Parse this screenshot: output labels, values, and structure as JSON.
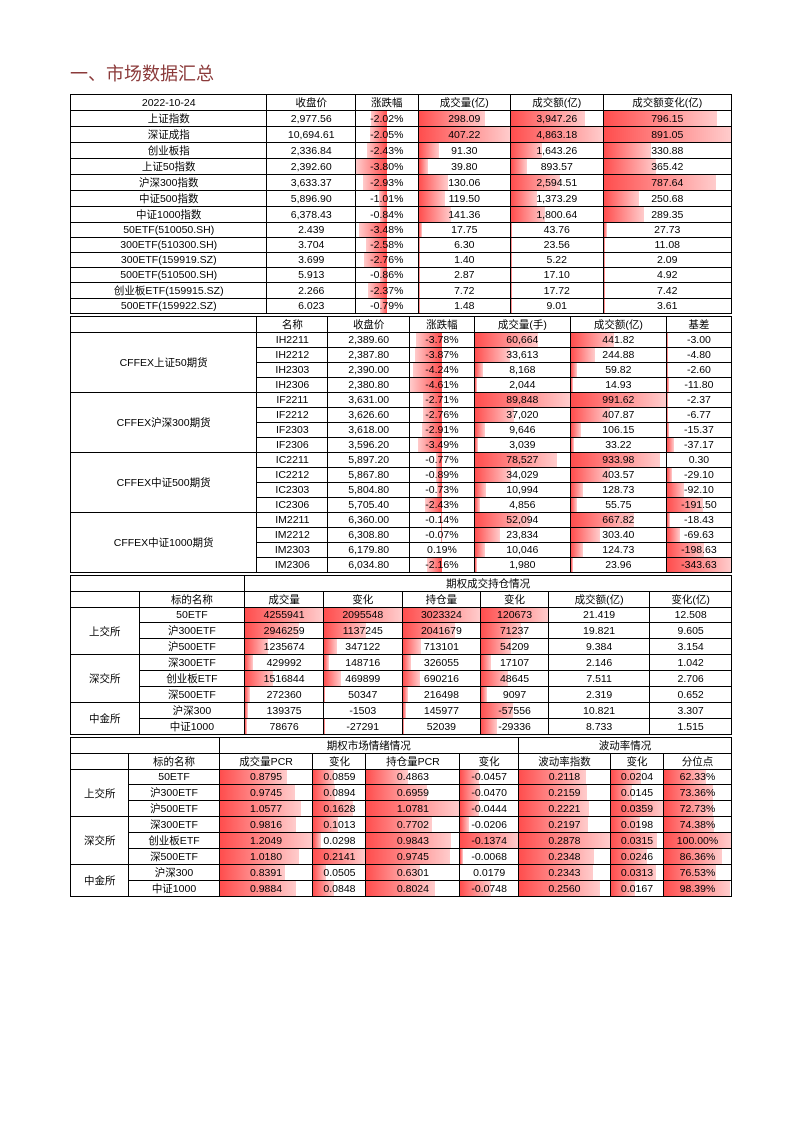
{
  "colors": {
    "title": "#8b3a3a",
    "barGrad1": "#ff4d4d",
    "barGrad2": "#ffcccc",
    "border": "#000000",
    "bg": "#ffffff"
  },
  "titleText": "一、市场数据汇总",
  "t1": {
    "hdr": [
      "2022-10-24",
      "收盘价",
      "涨跌幅",
      "成交量(亿)",
      "成交额(亿)",
      "成交额变化(亿)"
    ],
    "rows": [
      [
        "上证指数",
        "2,977.56",
        "-2.02%",
        "298.09",
        "3,947.26",
        "796.15"
      ],
      [
        "深证成指",
        "10,694.61",
        "-2.05%",
        "407.22",
        "4,863.18",
        "891.05"
      ],
      [
        "创业板指",
        "2,336.84",
        "-2.43%",
        "91.30",
        "1,643.26",
        "330.88"
      ],
      [
        "上证50指数",
        "2,392.60",
        "-3.80%",
        "39.80",
        "893.57",
        "365.42"
      ],
      [
        "沪深300指数",
        "3,633.37",
        "-2.93%",
        "130.06",
        "2,594.51",
        "787.64"
      ],
      [
        "中证500指数",
        "5,896.90",
        "-1.01%",
        "119.50",
        "1,373.29",
        "250.68"
      ],
      [
        "中证1000指数",
        "6,378.43",
        "-0.84%",
        "141.36",
        "1,800.64",
        "289.35"
      ],
      [
        "50ETF(510050.SH)",
        "2.439",
        "-3.48%",
        "17.75",
        "43.76",
        "27.73"
      ],
      [
        "300ETF(510300.SH)",
        "3.704",
        "-2.58%",
        "6.30",
        "23.56",
        "11.08"
      ],
      [
        "300ETF(159919.SZ)",
        "3.699",
        "-2.76%",
        "1.40",
        "5.22",
        "2.09"
      ],
      [
        "500ETF(510500.SH)",
        "5.913",
        "-0.86%",
        "2.87",
        "17.10",
        "4.92"
      ],
      [
        "创业板ETF(159915.SZ)",
        "2.266",
        "-2.37%",
        "7.72",
        "17.72",
        "7.42"
      ],
      [
        "500ETF(159922.SZ)",
        "6.023",
        "-0.79%",
        "1.48",
        "9.01",
        "3.61"
      ]
    ],
    "chgWidth": [
      53,
      54,
      64,
      100,
      77,
      27,
      22,
      92,
      68,
      73,
      23,
      62,
      21
    ],
    "volWidth": [
      73,
      100,
      22,
      10,
      32,
      29,
      35,
      4,
      2,
      1,
      1,
      2,
      1
    ],
    "amtWidth": [
      81,
      100,
      34,
      18,
      53,
      28,
      37,
      1,
      1,
      1,
      1,
      1,
      1
    ],
    "amtChgWidth": [
      89,
      100,
      37,
      41,
      88,
      28,
      32,
      3,
      1,
      1,
      1,
      1,
      1
    ]
  },
  "t2": {
    "hdr": [
      "",
      "名称",
      "收盘价",
      "涨跌幅",
      "成交量(手)",
      "成交额(亿)",
      "基差"
    ],
    "groups": [
      {
        "name": "CFFEX上证50期货",
        "rows": [
          [
            "IH2211",
            "2,389.60",
            "-3.78%",
            "60,664",
            "441.82",
            "-3.00"
          ],
          [
            "IH2212",
            "2,387.80",
            "-3.87%",
            "33,613",
            "244.88",
            "-4.80"
          ],
          [
            "IH2303",
            "2,390.00",
            "-4.24%",
            "8,168",
            "59.82",
            "-2.60"
          ],
          [
            "IH2306",
            "2,380.80",
            "-4.61%",
            "2,044",
            "14.93",
            "-11.80"
          ]
        ],
        "chgW": [
          82,
          84,
          92,
          100
        ],
        "volW": [
          67,
          37,
          9,
          2
        ],
        "amtW": [
          45,
          25,
          6,
          2
        ],
        "basW": [
          1,
          1,
          1,
          3
        ]
      },
      {
        "name": "CFFEX沪深300期货",
        "rows": [
          [
            "IF2211",
            "3,631.00",
            "-2.71%",
            "89,848",
            "991.62",
            "-2.37"
          ],
          [
            "IF2212",
            "3,626.60",
            "-2.76%",
            "37,020",
            "407.87",
            "-6.77"
          ],
          [
            "IF2303",
            "3,618.00",
            "-2.91%",
            "9,646",
            "106.15",
            "-15.37"
          ],
          [
            "IF2306",
            "3,596.20",
            "-3.49%",
            "3,039",
            "33.22",
            "-37.17"
          ]
        ],
        "chgW": [
          59,
          60,
          63,
          76
        ],
        "volW": [
          100,
          41,
          11,
          3
        ],
        "amtW": [
          100,
          41,
          11,
          3
        ],
        "basW": [
          1,
          2,
          4,
          11
        ]
      },
      {
        "name": "CFFEX中证500期货",
        "rows": [
          [
            "IC2211",
            "5,897.20",
            "-0.77%",
            "78,527",
            "933.98",
            "0.30"
          ],
          [
            "IC2212",
            "5,867.80",
            "-0.89%",
            "34,029",
            "403.57",
            "-29.10"
          ],
          [
            "IC2303",
            "5,804.80",
            "-0.73%",
            "10,994",
            "128.73",
            "-92.10"
          ],
          [
            "IC2306",
            "5,705.40",
            "-2.43%",
            "4,856",
            "55.75",
            "-191.50"
          ]
        ],
        "chgW": [
          17,
          19,
          16,
          53
        ],
        "volW": [
          87,
          38,
          12,
          5
        ],
        "amtW": [
          94,
          41,
          13,
          6
        ],
        "basW": [
          0,
          8,
          27,
          56
        ]
      },
      {
        "name": "CFFEX中证1000期货",
        "rows": [
          [
            "IM2211",
            "6,360.00",
            "-0.14%",
            "52,094",
            "667.82",
            "-18.43"
          ],
          [
            "IM2212",
            "6,308.80",
            "-0.07%",
            "23,834",
            "303.40",
            "-69.63"
          ],
          [
            "IM2303",
            "6,179.80",
            "0.19%",
            "10,046",
            "124.73",
            "-198.63"
          ],
          [
            "IM2306",
            "6,034.80",
            "-2.16%",
            "1,980",
            "23.96",
            "-343.63"
          ]
        ],
        "chgW": [
          3,
          2,
          0,
          47
        ],
        "volW": [
          58,
          27,
          11,
          2
        ],
        "amtW": [
          67,
          31,
          13,
          2
        ],
        "basW": [
          5,
          20,
          58,
          100
        ]
      }
    ]
  },
  "t3": {
    "title": "期权成交持仓情况",
    "hdr": [
      "",
      "标的名称",
      "成交量",
      "变化",
      "持仓量",
      "变化",
      "成交额(亿)",
      "变化(亿)"
    ],
    "groups": [
      {
        "name": "上交所",
        "rows": [
          [
            "50ETF",
            "4255941",
            "2095548",
            "3023324",
            "120673",
            "21.419",
            "12.508"
          ],
          [
            "沪300ETF",
            "2946259",
            "1137245",
            "2041679",
            "71237",
            "19.821",
            "9.605"
          ],
          [
            "沪500ETF",
            "1235674",
            "347122",
            "713101",
            "54209",
            "9.384",
            "3.154"
          ]
        ],
        "volW": [
          100,
          69,
          29
        ],
        "chgW": [
          100,
          54,
          17
        ],
        "posW": [
          100,
          68,
          24
        ],
        "pchgW": [
          100,
          59,
          45
        ]
      },
      {
        "name": "深交所",
        "rows": [
          [
            "深300ETF",
            "429992",
            "148716",
            "326055",
            "17107",
            "2.146",
            "1.042"
          ],
          [
            "创业板ETF",
            "1516844",
            "469899",
            "690216",
            "48645",
            "7.511",
            "2.706"
          ],
          [
            "深500ETF",
            "272360",
            "50347",
            "216498",
            "9097",
            "2.319",
            "0.652"
          ]
        ],
        "volW": [
          10,
          36,
          6
        ],
        "chgW": [
          7,
          22,
          2
        ],
        "posW": [
          11,
          23,
          7
        ],
        "pchgW": [
          14,
          40,
          8
        ]
      },
      {
        "name": "中金所",
        "rows": [
          [
            "沪深300",
            "139375",
            "-1503",
            "145977",
            "-57556",
            "10.821",
            "3.307"
          ],
          [
            "中证1000",
            "78676",
            "-27291",
            "52039",
            "-29336",
            "8.733",
            "1.515"
          ]
        ],
        "volW": [
          3,
          2
        ],
        "chgW": [
          0,
          1
        ],
        "posW": [
          5,
          2
        ],
        "pchgW": [
          48,
          24
        ]
      }
    ]
  },
  "t4": {
    "title1": "期权市场情绪情况",
    "title2": "波动率情况",
    "hdr": [
      "",
      "标的名称",
      "成交量PCR",
      "变化",
      "持仓量PCR",
      "变化",
      "波动率指数",
      "变化",
      "分位点"
    ],
    "groups": [
      {
        "name": "上交所",
        "rows": [
          [
            "50ETF",
            "0.8795",
            "0.0859",
            "0.4863",
            "-0.0457",
            "0.2118",
            "0.0204",
            "62.33%"
          ],
          [
            "沪300ETF",
            "0.9745",
            "0.0894",
            "0.6959",
            "-0.0470",
            "0.2159",
            "0.0145",
            "73.36%"
          ],
          [
            "沪500ETF",
            "1.0577",
            "0.1628",
            "1.0781",
            "-0.0444",
            "0.2221",
            "0.0359",
            "72.73%"
          ]
        ]
      },
      {
        "name": "深交所",
        "rows": [
          [
            "深300ETF",
            "0.9816",
            "0.1013",
            "0.7702",
            "-0.0206",
            "0.2197",
            "0.0198",
            "74.38%"
          ],
          [
            "创业板ETF",
            "1.2049",
            "0.0298",
            "0.9843",
            "-0.1374",
            "0.2878",
            "0.0315",
            "100.00%"
          ],
          [
            "深500ETF",
            "1.0180",
            "0.2141",
            "0.9745",
            "-0.0068",
            "0.2348",
            "0.0246",
            "86.36%"
          ]
        ]
      },
      {
        "name": "中金所",
        "rows": [
          [
            "沪深300",
            "0.8391",
            "0.0505",
            "0.6301",
            "0.0179",
            "0.2343",
            "0.0313",
            "76.53%"
          ],
          [
            "中证1000",
            "0.9884",
            "0.0848",
            "0.8024",
            "-0.0748",
            "0.2560",
            "0.0167",
            "98.39%"
          ]
        ]
      }
    ],
    "pcrVW": [
      73,
      81,
      88,
      82,
      100,
      85,
      70,
      82
    ],
    "pcrVCW": [
      40,
      42,
      76,
      47,
      14,
      100,
      24,
      40
    ],
    "pcrPW": [
      45,
      65,
      100,
      71,
      91,
      90,
      58,
      74
    ],
    "pcrPCW": [
      33,
      34,
      32,
      15,
      100,
      5,
      0,
      54
    ],
    "volIW": [
      74,
      75,
      77,
      76,
      100,
      82,
      81,
      89
    ],
    "volICW": [
      57,
      40,
      100,
      55,
      88,
      69,
      87,
      47
    ],
    "pctW": [
      62,
      73,
      73,
      74,
      100,
      86,
      77,
      98
    ]
  }
}
